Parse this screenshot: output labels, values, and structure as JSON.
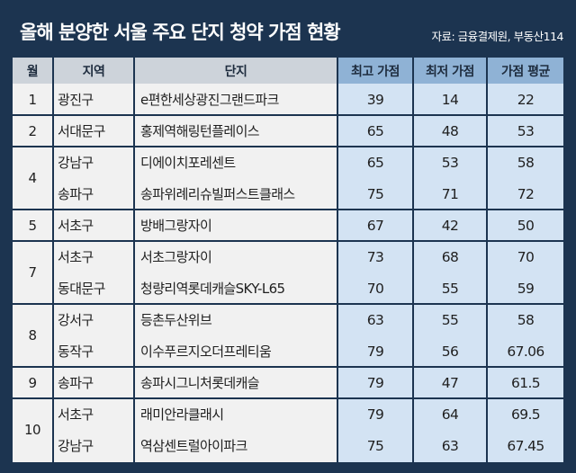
{
  "title": "올해 분양한 서울 주요 단지 청약 가점 현황",
  "source": "자료: 금융결제원, 부동산114",
  "colors": {
    "background": "#1c3450",
    "header_light": "#cdd3da",
    "header_blue": "#8fb2d5",
    "strip_light": "#f1f1f1",
    "strip_blue": "#d3e3f3"
  },
  "chart_data": {
    "type": "table",
    "title": "올해 분양한 서울 주요 단지 청약 가점 현황",
    "columns": [
      "월",
      "지역",
      "단지",
      "최고 가점",
      "최저 가점",
      "가점 평균"
    ],
    "month_groups": [
      {
        "month": "1",
        "rows": 1
      },
      {
        "month": "2",
        "rows": 1
      },
      {
        "month": "4",
        "rows": 2
      },
      {
        "month": "5",
        "rows": 1
      },
      {
        "month": "7",
        "rows": 2
      },
      {
        "month": "8",
        "rows": 2
      },
      {
        "month": "9",
        "rows": 1
      },
      {
        "month": "10",
        "rows": 2
      }
    ],
    "rows": [
      {
        "region": "광진구",
        "complex": "e편한세상광진그랜드파크",
        "max": "39",
        "min": "14",
        "avg": "22"
      },
      {
        "region": "서대문구",
        "complex": "홍제역해링턴플레이스",
        "max": "65",
        "min": "48",
        "avg": "53"
      },
      {
        "region": "강남구",
        "complex": "디에이치포레센트",
        "max": "65",
        "min": "53",
        "avg": "58"
      },
      {
        "region": "송파구",
        "complex": "송파위례리슈빌퍼스트클래스",
        "max": "75",
        "min": "71",
        "avg": "72"
      },
      {
        "region": "서초구",
        "complex": "방배그랑자이",
        "max": "67",
        "min": "42",
        "avg": "50"
      },
      {
        "region": "서초구",
        "complex": "서초그랑자이",
        "max": "73",
        "min": "68",
        "avg": "70"
      },
      {
        "region": "동대문구",
        "complex": "청량리역롯데캐슬SKY-L65",
        "max": "70",
        "min": "55",
        "avg": "59"
      },
      {
        "region": "강서구",
        "complex": "등촌두산위브",
        "max": "63",
        "min": "55",
        "avg": "58"
      },
      {
        "region": "동작구",
        "complex": "이수푸르지오더프레티움",
        "max": "79",
        "min": "56",
        "avg": "67.06"
      },
      {
        "region": "송파구",
        "complex": "송파시그니처롯데캐슬",
        "max": "79",
        "min": "47",
        "avg": "61.5"
      },
      {
        "region": "서초구",
        "complex": "래미안라클래시",
        "max": "79",
        "min": "64",
        "avg": "69.5"
      },
      {
        "region": "강남구",
        "complex": "역삼센트럴아이파크",
        "max": "75",
        "min": "63",
        "avg": "67.45"
      }
    ]
  }
}
